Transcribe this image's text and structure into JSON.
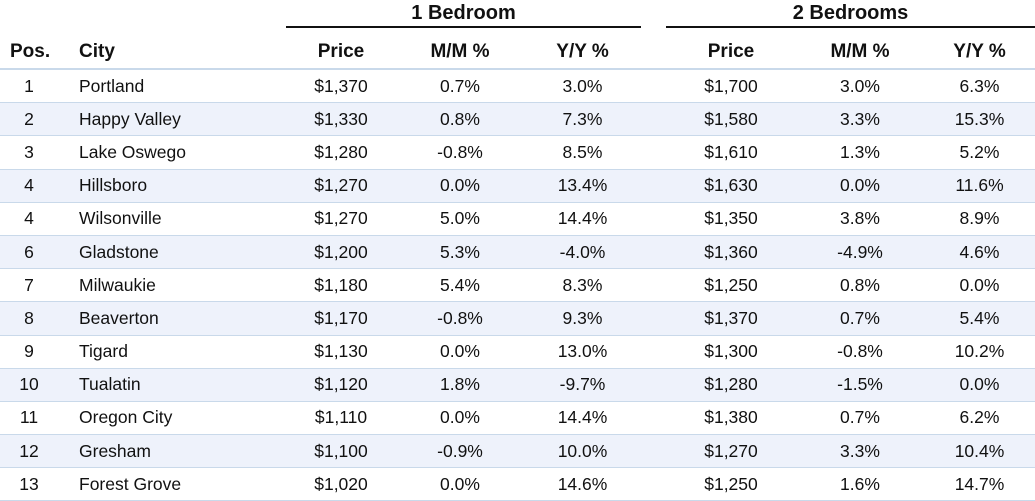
{
  "groups": {
    "one_bedroom": "1 Bedroom",
    "two_bedrooms": "2 Bedrooms"
  },
  "columns": {
    "pos": "Pos.",
    "city": "City",
    "price1": "Price",
    "mm1": "M/M %",
    "yy1": "Y/Y %",
    "price2": "Price",
    "mm2": "M/M %",
    "yy2": "Y/Y %"
  },
  "rows": [
    {
      "pos": "1",
      "city": "Portland",
      "price1": "$1,370",
      "mm1": "0.7%",
      "yy1": "3.0%",
      "price2": "$1,700",
      "mm2": "3.0%",
      "yy2": "6.3%"
    },
    {
      "pos": "2",
      "city": "Happy Valley",
      "price1": "$1,330",
      "mm1": "0.8%",
      "yy1": "7.3%",
      "price2": "$1,580",
      "mm2": "3.3%",
      "yy2": "15.3%"
    },
    {
      "pos": "3",
      "city": "Lake Oswego",
      "price1": "$1,280",
      "mm1": "-0.8%",
      "yy1": "8.5%",
      "price2": "$1,610",
      "mm2": "1.3%",
      "yy2": "5.2%"
    },
    {
      "pos": "4",
      "city": "Hillsboro",
      "price1": "$1,270",
      "mm1": "0.0%",
      "yy1": "13.4%",
      "price2": "$1,630",
      "mm2": "0.0%",
      "yy2": "11.6%"
    },
    {
      "pos": "4",
      "city": "Wilsonville",
      "price1": "$1,270",
      "mm1": "5.0%",
      "yy1": "14.4%",
      "price2": "$1,350",
      "mm2": "3.8%",
      "yy2": "8.9%"
    },
    {
      "pos": "6",
      "city": "Gladstone",
      "price1": "$1,200",
      "mm1": "5.3%",
      "yy1": "-4.0%",
      "price2": "$1,360",
      "mm2": "-4.9%",
      "yy2": "4.6%"
    },
    {
      "pos": "7",
      "city": "Milwaukie",
      "price1": "$1,180",
      "mm1": "5.4%",
      "yy1": "8.3%",
      "price2": "$1,250",
      "mm2": "0.8%",
      "yy2": "0.0%"
    },
    {
      "pos": "8",
      "city": "Beaverton",
      "price1": "$1,170",
      "mm1": "-0.8%",
      "yy1": "9.3%",
      "price2": "$1,370",
      "mm2": "0.7%",
      "yy2": "5.4%"
    },
    {
      "pos": "9",
      "city": "Tigard",
      "price1": "$1,130",
      "mm1": "0.0%",
      "yy1": "13.0%",
      "price2": "$1,300",
      "mm2": "-0.8%",
      "yy2": "10.2%"
    },
    {
      "pos": "10",
      "city": "Tualatin",
      "price1": "$1,120",
      "mm1": "1.8%",
      "yy1": "-9.7%",
      "price2": "$1,280",
      "mm2": "-1.5%",
      "yy2": "0.0%"
    },
    {
      "pos": "11",
      "city": "Oregon City",
      "price1": "$1,110",
      "mm1": "0.0%",
      "yy1": "14.4%",
      "price2": "$1,380",
      "mm2": "0.7%",
      "yy2": "6.2%"
    },
    {
      "pos": "12",
      "city": "Gresham",
      "price1": "$1,100",
      "mm1": "-0.9%",
      "yy1": "10.0%",
      "price2": "$1,270",
      "mm2": "3.3%",
      "yy2": "10.4%"
    },
    {
      "pos": "13",
      "city": "Forest Grove",
      "price1": "$1,020",
      "mm1": "0.0%",
      "yy1": "14.6%",
      "price2": "$1,250",
      "mm2": "1.6%",
      "yy2": "14.7%"
    }
  ]
}
